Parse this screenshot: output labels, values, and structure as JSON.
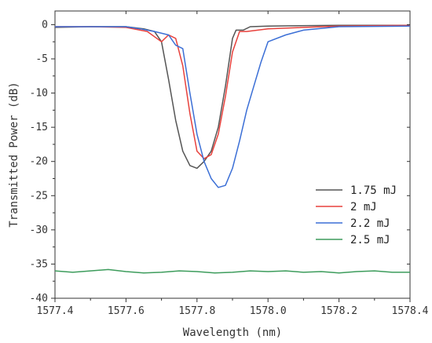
{
  "chart_data": {
    "type": "line",
    "title": "",
    "xlabel": "Wavelength (nm)",
    "ylabel": "Transmitted Power (dB)",
    "xlim": [
      1577.4,
      1578.4
    ],
    "ylim": [
      -40,
      2
    ],
    "xticks": [
      1577.4,
      1577.6,
      1577.8,
      1578.0,
      1578.2,
      1578.4
    ],
    "xtick_labels": [
      "1577.4",
      "1577.6",
      "1577.8",
      "1578.0",
      "1578.2",
      "1578.4"
    ],
    "yticks": [
      0,
      -5,
      -10,
      -15,
      -20,
      -25,
      -30,
      -35,
      -40
    ],
    "ytick_labels": [
      "0",
      "-5",
      "-10",
      "-15",
      "-20",
      "-25",
      "-30",
      "-35",
      "-40"
    ],
    "grid": false,
    "legend_position": "right",
    "series": [
      {
        "name": "1.75 mJ",
        "color": "#555555",
        "x": [
          1577.4,
          1577.5,
          1577.6,
          1577.65,
          1577.68,
          1577.7,
          1577.72,
          1577.74,
          1577.76,
          1577.78,
          1577.8,
          1577.82,
          1577.84,
          1577.86,
          1577.88,
          1577.9,
          1577.91,
          1577.93,
          1577.95,
          1578.0,
          1578.2,
          1578.4
        ],
        "y": [
          -0.4,
          -0.3,
          -0.3,
          -0.6,
          -1.0,
          -2.5,
          -8.0,
          -14.0,
          -18.5,
          -20.6,
          -21.0,
          -20.0,
          -18.5,
          -15.0,
          -9.0,
          -2.0,
          -0.8,
          -0.8,
          -0.3,
          -0.2,
          -0.1,
          -0.1
        ]
      },
      {
        "name": "2 mJ",
        "color": "#e8413c",
        "x": [
          1577.4,
          1577.5,
          1577.6,
          1577.66,
          1577.7,
          1577.72,
          1577.74,
          1577.76,
          1577.78,
          1577.8,
          1577.82,
          1577.84,
          1577.86,
          1577.88,
          1577.9,
          1577.92,
          1577.94,
          1578.0,
          1578.2,
          1578.4
        ],
        "y": [
          -0.3,
          -0.3,
          -0.4,
          -1.0,
          -2.5,
          -1.5,
          -2.0,
          -6.0,
          -13.0,
          -18.5,
          -19.6,
          -19.0,
          -16.0,
          -10.5,
          -4.0,
          -1.0,
          -1.0,
          -0.6,
          -0.2,
          -0.1
        ]
      },
      {
        "name": "2.2 mJ",
        "color": "#3b6fd6",
        "x": [
          1577.4,
          1577.5,
          1577.6,
          1577.64,
          1577.68,
          1577.72,
          1577.74,
          1577.76,
          1577.78,
          1577.8,
          1577.82,
          1577.84,
          1577.86,
          1577.88,
          1577.9,
          1577.92,
          1577.94,
          1577.96,
          1577.98,
          1578.0,
          1578.05,
          1578.1,
          1578.2,
          1578.4
        ],
        "y": [
          -0.3,
          -0.3,
          -0.3,
          -0.6,
          -1.0,
          -1.5,
          -3.0,
          -3.5,
          -10.0,
          -16.0,
          -20.0,
          -22.5,
          -23.8,
          -23.5,
          -21.0,
          -17.0,
          -12.5,
          -9.0,
          -5.5,
          -2.5,
          -1.5,
          -0.8,
          -0.3,
          -0.2
        ]
      },
      {
        "name": "2.5 mJ",
        "color": "#3d9c5c",
        "x": [
          1577.4,
          1577.45,
          1577.5,
          1577.55,
          1577.6,
          1577.65,
          1577.7,
          1577.75,
          1577.8,
          1577.85,
          1577.9,
          1577.95,
          1578.0,
          1578.05,
          1578.1,
          1578.15,
          1578.2,
          1578.25,
          1578.3,
          1578.35,
          1578.4
        ],
        "y": [
          -36.0,
          -36.2,
          -36.0,
          -35.8,
          -36.1,
          -36.3,
          -36.2,
          -36.0,
          -36.1,
          -36.3,
          -36.2,
          -36.0,
          -36.1,
          -36.0,
          -36.2,
          -36.1,
          -36.3,
          -36.1,
          -36.0,
          -36.2,
          -36.2
        ]
      }
    ]
  }
}
